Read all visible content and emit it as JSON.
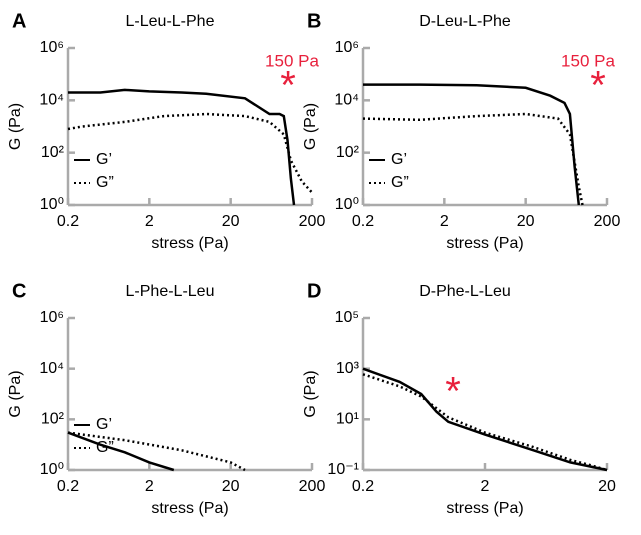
{
  "chart_data": [
    {
      "type": "line",
      "panel": "A",
      "title": "L-Leu-L-Phe",
      "xlabel": "stress (Pa)",
      "ylabel": "G (Pa)",
      "xscale": "log",
      "yscale": "log",
      "xlim": [
        0.2,
        200
      ],
      "ylim": [
        1,
        1000000
      ],
      "xticks": [
        0.2,
        2,
        20,
        200
      ],
      "yticks": [
        {
          "value": 1,
          "label": "10⁰"
        },
        {
          "value": 100,
          "label": "10²"
        },
        {
          "value": 10000,
          "label": "10⁴"
        },
        {
          "value": 1000000,
          "label": "10⁶"
        }
      ],
      "legend": true,
      "annotations": [
        {
          "text": "150 Pa"
        },
        {
          "text": "*"
        }
      ],
      "series": [
        {
          "name": "G’",
          "color": "#000000",
          "dash": "solid",
          "x": [
            0.2,
            0.5,
            1,
            2,
            5,
            10,
            30,
            60,
            80,
            90,
            100,
            110,
            120
          ],
          "values": [
            20000,
            20000,
            25000,
            22000,
            20000,
            18000,
            12000,
            3000,
            3000,
            2500,
            300,
            10,
            1
          ]
        },
        {
          "name": "G”",
          "color": "#000000",
          "dash": "dotted",
          "x": [
            0.2,
            0.3,
            1,
            3,
            10,
            30,
            60,
            90,
            110,
            150,
            200
          ],
          "values": [
            800,
            1000,
            1500,
            2500,
            3000,
            2500,
            1500,
            500,
            50,
            8,
            3
          ]
        }
      ]
    },
    {
      "type": "line",
      "panel": "B",
      "title": "D-Leu-L-Phe",
      "xlabel": "stress (Pa)",
      "ylabel": "G (Pa)",
      "xscale": "log",
      "yscale": "log",
      "xlim": [
        0.2,
        200
      ],
      "ylim": [
        1,
        1000000
      ],
      "xticks": [
        0.2,
        2,
        20,
        200
      ],
      "yticks": [
        {
          "value": 1,
          "label": "10⁰"
        },
        {
          "value": 100,
          "label": "10²"
        },
        {
          "value": 10000,
          "label": "10⁴"
        },
        {
          "value": 1000000,
          "label": "10⁶"
        }
      ],
      "legend": true,
      "annotations": [
        {
          "text": "150 Pa"
        },
        {
          "text": "*"
        }
      ],
      "series": [
        {
          "name": "G’",
          "color": "#000000",
          "dash": "solid",
          "x": [
            0.2,
            1,
            5,
            20,
            40,
            60,
            70,
            80,
            90
          ],
          "values": [
            40000,
            40000,
            38000,
            30000,
            15000,
            8000,
            3000,
            30,
            1
          ]
        },
        {
          "name": "G”",
          "color": "#000000",
          "dash": "dotted",
          "x": [
            0.2,
            1,
            5,
            20,
            50,
            70,
            90,
            100
          ],
          "values": [
            2000,
            1800,
            2500,
            3000,
            2000,
            500,
            5,
            1
          ]
        }
      ]
    },
    {
      "type": "line",
      "panel": "C",
      "title": "L-Phe-L-Leu",
      "xlabel": "stress (Pa)",
      "ylabel": "G (Pa)",
      "xscale": "log",
      "yscale": "log",
      "xlim": [
        0.2,
        200
      ],
      "ylim": [
        1,
        1000000
      ],
      "xticks": [
        0.2,
        2,
        20,
        200
      ],
      "yticks": [
        {
          "value": 1,
          "label": "10⁰"
        },
        {
          "value": 100,
          "label": "10²"
        },
        {
          "value": 10000,
          "label": "10⁴"
        },
        {
          "value": 1000000,
          "label": "10⁶"
        }
      ],
      "legend": true,
      "annotations": [],
      "series": [
        {
          "name": "G’",
          "color": "#000000",
          "dash": "solid",
          "x": [
            0.2,
            0.5,
            1,
            2,
            4
          ],
          "values": [
            30,
            10,
            5,
            2,
            1
          ]
        },
        {
          "name": "G”",
          "color": "#000000",
          "dash": "dotted",
          "x": [
            0.2,
            1,
            5,
            20,
            30
          ],
          "values": [
            30,
            15,
            6,
            2,
            1
          ]
        }
      ]
    },
    {
      "type": "line",
      "panel": "D",
      "title": "D-Phe-L-Leu",
      "xlabel": "stress (Pa)",
      "ylabel": "G (Pa)",
      "xscale": "log",
      "yscale": "log",
      "xlim": [
        0.2,
        20
      ],
      "ylim": [
        0.1,
        100000
      ],
      "xticks": [
        0.2,
        2,
        20
      ],
      "yticks": [
        {
          "value": 0.1,
          "label": "10⁻¹"
        },
        {
          "value": 10,
          "label": "10¹"
        },
        {
          "value": 1000,
          "label": "10³"
        },
        {
          "value": 100000,
          "label": "10⁵"
        }
      ],
      "legend": false,
      "annotations": [
        {
          "text": "*"
        }
      ],
      "series": [
        {
          "name": "G’",
          "color": "#000000",
          "dash": "solid",
          "x": [
            0.2,
            0.4,
            0.6,
            0.8,
            1,
            2,
            5,
            10,
            20
          ],
          "values": [
            1000,
            300,
            100,
            20,
            8,
            2.5,
            0.6,
            0.2,
            0.1
          ]
        },
        {
          "name": "G”",
          "color": "#000000",
          "dash": "dotted",
          "x": [
            0.2,
            0.4,
            0.6,
            1,
            2,
            5,
            10,
            15,
            20
          ],
          "values": [
            600,
            200,
            80,
            12,
            3,
            0.8,
            0.25,
            0.15,
            0.1
          ]
        }
      ]
    }
  ]
}
